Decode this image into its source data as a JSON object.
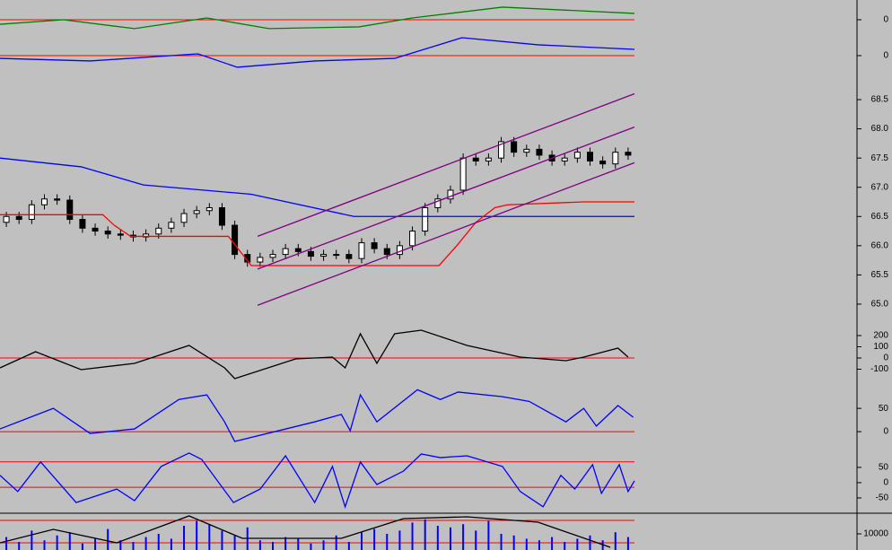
{
  "chart_data": [
    {
      "type": "line",
      "xlim": [
        0,
        50
      ],
      "ylim": [
        -1,
        1
      ],
      "yticks": [
        0
      ],
      "hlines": [
        0
      ],
      "hline_color": "#ff0000",
      "series": [
        {
          "color": "#008000",
          "x": [
            0,
            5,
            10.6,
            16.3,
            21.2,
            28.3,
            32.5,
            39.6,
            50
          ],
          "values": [
            -0.23,
            0,
            -0.45,
            0.09,
            -0.45,
            -0.36,
            0.09,
            0.64,
            0.32
          ]
        }
      ]
    },
    {
      "type": "line",
      "xlim": [
        0,
        50
      ],
      "ylim": [
        -1,
        1
      ],
      "yticks": [
        0
      ],
      "hlines": [
        0
      ],
      "hline_color": "#ff0000",
      "series": [
        {
          "color": "#0000ff",
          "x": [
            0,
            7.1,
            15.6,
            18.7,
            24.8,
            31.1,
            36.4,
            42.4,
            50
          ],
          "values": [
            -0.17,
            -0.33,
            0.11,
            -0.72,
            -0.33,
            -0.17,
            1.11,
            0.67,
            0.39
          ]
        }
      ]
    },
    {
      "type": "candlestick",
      "xlim": [
        0,
        50
      ],
      "ylim": [
        64.6,
        68.9
      ],
      "yticks": [
        68.5,
        {
          "value": 68,
          "label": "68.0"
        },
        67.5,
        {
          "value": 67,
          "label": "67.0"
        },
        66.5,
        {
          "value": 66,
          "label": "66.0"
        },
        65.5,
        {
          "value": 65,
          "label": "65.0"
        }
      ],
      "open": [
        66.4,
        66.5,
        66.45,
        66.7,
        66.8,
        66.78,
        66.45,
        66.3,
        66.25,
        66.2,
        66.18,
        66.15,
        66.2,
        66.3,
        66.4,
        66.55,
        66.6,
        66.65,
        66.35,
        65.85,
        65.72,
        65.8,
        65.85,
        65.95,
        65.9,
        65.82,
        65.85,
        65.85,
        65.78,
        66.05,
        65.95,
        65.85,
        66.0,
        66.25,
        66.65,
        66.8,
        66.95,
        67.5,
        67.45,
        67.5,
        67.78,
        67.6,
        67.65,
        67.55,
        67.45,
        67.5,
        67.6,
        67.45,
        67.4,
        67.6
      ],
      "high": [
        66.58,
        66.58,
        66.78,
        66.88,
        66.88,
        66.86,
        66.53,
        66.38,
        66.33,
        66.28,
        66.26,
        66.28,
        66.38,
        66.48,
        66.63,
        66.68,
        66.73,
        66.73,
        66.43,
        65.93,
        65.88,
        65.93,
        66.03,
        66.03,
        65.98,
        65.93,
        65.93,
        65.93,
        66.13,
        66.13,
        66.03,
        66.08,
        66.33,
        66.73,
        66.88,
        67.03,
        67.58,
        67.58,
        67.58,
        67.86,
        67.86,
        67.73,
        67.73,
        67.63,
        67.58,
        67.68,
        67.68,
        67.53,
        67.68,
        67.68
      ],
      "low": [
        66.32,
        66.37,
        66.37,
        66.62,
        66.7,
        66.37,
        66.22,
        66.17,
        66.12,
        66.1,
        66.07,
        66.07,
        66.12,
        66.22,
        66.32,
        66.47,
        66.52,
        66.27,
        65.77,
        65.64,
        65.64,
        65.72,
        65.77,
        65.82,
        65.74,
        65.74,
        65.77,
        65.7,
        65.7,
        65.87,
        65.77,
        65.77,
        65.92,
        66.17,
        66.57,
        66.72,
        66.87,
        67.37,
        67.37,
        67.42,
        67.52,
        67.52,
        67.47,
        67.37,
        67.37,
        67.42,
        67.37,
        67.32,
        67.32,
        67.47
      ],
      "close": [
        66.5,
        66.45,
        66.7,
        66.8,
        66.78,
        66.45,
        66.3,
        66.25,
        66.2,
        66.18,
        66.15,
        66.2,
        66.3,
        66.4,
        66.55,
        66.6,
        66.65,
        66.35,
        65.85,
        65.72,
        65.8,
        65.85,
        65.95,
        65.9,
        65.82,
        65.85,
        65.85,
        65.78,
        66.05,
        65.95,
        65.85,
        66.0,
        66.25,
        66.65,
        66.8,
        66.95,
        67.5,
        67.45,
        67.5,
        67.78,
        67.6,
        67.65,
        67.55,
        67.45,
        67.5,
        67.6,
        67.45,
        67.4,
        67.6,
        67.55
      ],
      "series": [
        {
          "color": "#0000ff",
          "x": [
            0,
            6.4,
            11.3,
            19.8,
            27.9,
            50
          ],
          "values": [
            67.5,
            67.35,
            67.04,
            66.88,
            66.5,
            66.5
          ]
        },
        {
          "color": "#ff0000",
          "x": [
            0,
            8.1,
            9,
            10.3,
            18,
            19.8,
            34.6,
            36,
            37.5,
            39,
            40,
            46,
            50
          ],
          "values": [
            66.53,
            66.53,
            66.35,
            66.16,
            66.16,
            65.66,
            65.66,
            66.0,
            66.4,
            66.65,
            66.7,
            66.75,
            66.75
          ]
        },
        {
          "color": "#800080",
          "x": [
            20.3,
            50
          ],
          "values": [
            66.16,
            68.6
          ]
        },
        {
          "color": "#800080",
          "x": [
            20.3,
            50
          ],
          "values": [
            65.6,
            68.03
          ]
        },
        {
          "color": "#800080",
          "x": [
            20.3,
            50
          ],
          "values": [
            64.98,
            67.42
          ]
        }
      ]
    },
    {
      "type": "line",
      "xlim": [
        0,
        50
      ],
      "ylim": [
        -208,
        272
      ],
      "yticks": [
        200,
        100,
        0,
        -100
      ],
      "hlines": [
        0
      ],
      "hline_color": "#ff0000",
      "series": [
        {
          "color": "#000000",
          "x": [
            0,
            2.8,
            6.4,
            10.6,
            14.9,
            17.7,
            18.5,
            23.3,
            26.2,
            27.2,
            28.4,
            29.7,
            31.1,
            33.2,
            36.8,
            41,
            44.6,
            46,
            48.7,
            49.5
          ],
          "values": [
            -88,
            56,
            -104,
            -48,
            112,
            -88,
            -184,
            -8,
            8,
            -88,
            216,
            -48,
            216,
            248,
            112,
            8,
            -24,
            8,
            88,
            8
          ]
        }
      ]
    },
    {
      "type": "line",
      "xlim": [
        0,
        50
      ],
      "ylim": [
        -21,
        108
      ],
      "yticks": [
        50,
        0
      ],
      "hlines": [
        0
      ],
      "hline_color": "#ff0000",
      "series": [
        {
          "color": "#0000ff",
          "x": [
            0,
            4.2,
            7.1,
            10.6,
            14.1,
            16.3,
            17.7,
            18.5,
            24.8,
            26.9,
            27.6,
            28.4,
            29.7,
            32.9,
            34.7,
            36.1,
            39.6,
            41.7,
            44.6,
            46,
            47,
            48.7,
            49.9
          ],
          "values": [
            5.8,
            50,
            -3.8,
            5.8,
            69,
            79,
            21,
            -21,
            21,
            37,
            2,
            79,
            21,
            90,
            69,
            85,
            75,
            65,
            21,
            50,
            12,
            56,
            31
          ]
        }
      ]
    },
    {
      "type": "line",
      "xlim": [
        0,
        50
      ],
      "ylim": [
        -100,
        135
      ],
      "yticks": [
        50,
        0,
        -50
      ],
      "hlines": [
        68,
        -15
      ],
      "hline_color": "#ff0000",
      "series": [
        {
          "color": "#0000ff",
          "x": [
            0,
            1.4,
            3.2,
            6,
            9.2,
            10.6,
            12.7,
            14.9,
            15.9,
            18.4,
            20.5,
            22.5,
            24.8,
            26.2,
            27.2,
            28.4,
            29.7,
            31.8,
            33.2,
            34.7,
            36.8,
            39.6,
            41,
            42.8,
            44.2,
            45.3,
            46.7,
            47.4,
            48.8,
            49.5,
            50
          ],
          "values": [
            24,
            -29,
            68,
            -65,
            -21,
            -59,
            53,
            97,
            76,
            -65,
            -21,
            88,
            -65,
            53,
            -79,
            68,
            -6,
            38,
            94,
            82,
            88,
            53,
            -29,
            -79,
            24,
            -21,
            59,
            -35,
            59,
            -29,
            6
          ]
        }
      ]
    },
    {
      "type": "volume",
      "xlim": [
        0,
        50
      ],
      "ylim": [
        0,
        22778
      ],
      "yticks": [
        10000
      ],
      "hlines": [
        18333,
        4444
      ],
      "hline_color": "#ff0000",
      "bar_color": "#0000ff",
      "bars": [
        8000,
        5000,
        12000,
        6000,
        9000,
        11000,
        4000,
        7000,
        13000,
        6000,
        5000,
        8000,
        10000,
        7000,
        15000,
        18000,
        16000,
        12000,
        9000,
        14000,
        6000,
        5000,
        8000,
        7000,
        4000,
        6000,
        9000,
        5000,
        11000,
        13000,
        10000,
        12000,
        17000,
        19000,
        15000,
        14000,
        16000,
        12000,
        18000,
        10000,
        9000,
        7000,
        6000,
        8000,
        5000,
        7000,
        9000,
        6000,
        11000,
        8000
      ],
      "series": [
        {
          "color": "#000000",
          "x": [
            0,
            4.2,
            9.2,
            14.9,
            19.1,
            26.9,
            31.8,
            36.8,
            42.4,
            48.1
          ],
          "values": [
            4444,
            12778,
            4444,
            21111,
            7222,
            7222,
            19444,
            20556,
            17222,
            1667
          ]
        }
      ]
    }
  ]
}
